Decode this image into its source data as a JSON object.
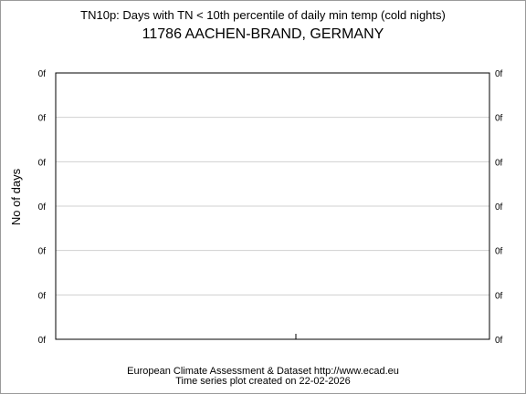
{
  "chart_data": {
    "type": "line",
    "title": "TN10p: Days with TN < 10th percentile of daily min temp (cold nights)",
    "subtitle": "11786 AACHEN-BRAND, GERMANY",
    "xlabel": "",
    "ylabel": "No of days",
    "y_tick_labels": [
      "0f",
      "0f",
      "0f",
      "0f",
      "0f",
      "0f",
      "0f"
    ],
    "x_tick_labels": [],
    "series": [],
    "grid": true,
    "legend": "none"
  },
  "footer": {
    "line1": "European Climate Assessment & Dataset  http://www.ecad.eu",
    "line2": "Time series plot created on 22-02-2026"
  },
  "colors": {
    "grid": "#d0d0d0",
    "frame": "#000000",
    "border": "#9a9a9a"
  }
}
